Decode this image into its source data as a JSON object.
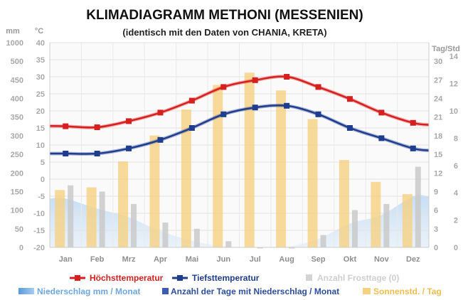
{
  "chart_data": {
    "type": "line",
    "title": "KLIMADIAGRAMM METHONI (MESSENIEN)",
    "subtitle": "(identisch mit den Daten von CHANIA, KRETA)",
    "categories": [
      "Jan",
      "Feb",
      "Mrz",
      "Apr",
      "Mai",
      "Jun",
      "Jul",
      "Aug",
      "Sep",
      "Okt",
      "Nov",
      "Dez"
    ],
    "axes": {
      "precip": {
        "unit": "mm",
        "ticks": [
          0,
          50,
          100,
          150,
          200,
          250,
          300,
          350,
          400,
          450,
          500,
          1000
        ],
        "range": [
          0,
          1000
        ]
      },
      "temp": {
        "unit": "°C",
        "ticks": [
          -20,
          -15,
          -10,
          -5,
          0,
          5,
          10,
          15,
          20,
          25,
          30,
          35,
          40
        ],
        "range": [
          -20,
          40
        ]
      },
      "days": {
        "unit": "Tag/Std",
        "ticks": [
          0,
          3,
          6,
          9,
          12,
          15,
          18,
          21,
          24,
          27,
          30
        ],
        "range": [
          0,
          33
        ]
      },
      "sun": {
        "ticks": [
          0,
          2,
          4,
          6,
          8,
          10,
          12,
          14
        ],
        "range": [
          0,
          15
        ]
      }
    },
    "grid": true,
    "legend_position": "bottom",
    "series": [
      {
        "name": "Höchsttemperatur",
        "axis": "temp",
        "color": "#d62020",
        "values": [
          15.5,
          15.2,
          17,
          19.5,
          23,
          27,
          29,
          30,
          27,
          23.5,
          19.5,
          16.5
        ]
      },
      {
        "name": "Tiefsttemperatur",
        "axis": "temp",
        "color": "#1f3d8f",
        "values": [
          7.5,
          7.5,
          9,
          11.5,
          15,
          19,
          21,
          21.5,
          19,
          15,
          12,
          9
        ]
      },
      {
        "name": "Anzahl Frosttage (0)",
        "axis": "days",
        "color": "#cfcfcf",
        "values": [
          0,
          0,
          0,
          0,
          0,
          0,
          0,
          0,
          0,
          0,
          0,
          0
        ]
      },
      {
        "name": "Niederschlag mm / Monat",
        "axis": "precip",
        "color": "#9cc6ec",
        "values": [
          131,
          104,
          81,
          44,
          18,
          3,
          1,
          2,
          23,
          64,
          87,
          137
        ]
      },
      {
        "name": "Anzahl der Tage mit Niederschlag / Monat",
        "axis": "days",
        "color": "#c9c9c9",
        "values": [
          10,
          9,
          7,
          4,
          3,
          1,
          0,
          0,
          2,
          6,
          7,
          13
        ]
      },
      {
        "name": "Sonnenstd. / Tag",
        "axis": "sun",
        "color": "#f6d182",
        "values": [
          4.2,
          4.4,
          6.3,
          8.2,
          10.1,
          11.9,
          12.8,
          11.5,
          9.4,
          6.4,
          4.8,
          3.9
        ]
      }
    ]
  }
}
